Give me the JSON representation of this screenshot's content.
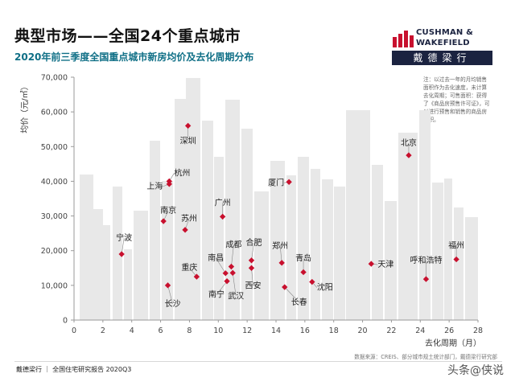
{
  "title": "典型市场——全国24个重点城市",
  "subtitle": "2020年前三季度全国重点城市新房均价及去化周期分布",
  "brand": {
    "line1": "CUSHMAN &",
    "line2": "WAKEFIELD",
    "cn": "戴德梁行",
    "accent_color": "#c8102e",
    "bar_color": "#1b2340"
  },
  "note": "注：以过去一年的月均销售面积作为去化速度，未计算去化周期；可售面积：获得了《商品房预售许可证》，可以进行预售和销售的商品房面积。",
  "source": "数据来源：CREIS、部分城市规土统计部门，戴德梁行研究部",
  "footer": "戴德梁行 ｜ 全国住宅研究报告 2020Q3",
  "watermark": "头条@侠说",
  "colors": {
    "point": "#c8102e",
    "skyline": "#e8e8e8",
    "subtitle": "#0f6f86"
  },
  "chart_data": {
    "type": "scatter",
    "xlabel": "去化周期（月）",
    "ylabel": "均价（元/㎡）",
    "xlim": [
      0,
      28
    ],
    "ylim": [
      0,
      70000
    ],
    "xticks": [
      "0",
      "2",
      "4",
      "6",
      "8",
      "10",
      "12",
      "14",
      "16",
      "18",
      "20",
      "22",
      "24",
      "26",
      "28"
    ],
    "yticks": [
      "0",
      "10,000",
      "20,000",
      "30,000",
      "40,000",
      "50,000",
      "60,000",
      "70,000"
    ],
    "points": [
      {
        "name": "深圳",
        "x": 7.9,
        "y": 56000
      },
      {
        "name": "北京",
        "x": 23.2,
        "y": 47500
      },
      {
        "name": "杭州",
        "x": 6.6,
        "y": 40000
      },
      {
        "name": "上海",
        "x": 6.6,
        "y": 39200
      },
      {
        "name": "厦门",
        "x": 14.9,
        "y": 39800
      },
      {
        "name": "南京",
        "x": 6.2,
        "y": 28500
      },
      {
        "name": "广州",
        "x": 10.3,
        "y": 29800
      },
      {
        "name": "苏州",
        "x": 7.7,
        "y": 26000
      },
      {
        "name": "宁波",
        "x": 3.3,
        "y": 19000
      },
      {
        "name": "福州",
        "x": 26.5,
        "y": 17500
      },
      {
        "name": "天津",
        "x": 20.6,
        "y": 16200
      },
      {
        "name": "合肥",
        "x": 12.3,
        "y": 17200
      },
      {
        "name": "郑州",
        "x": 14.4,
        "y": 16500
      },
      {
        "name": "成都",
        "x": 10.9,
        "y": 15400
      },
      {
        "name": "西安",
        "x": 12.3,
        "y": 15000
      },
      {
        "name": "青岛",
        "x": 15.9,
        "y": 13800
      },
      {
        "name": "武汉",
        "x": 11.0,
        "y": 13600
      },
      {
        "name": "南昌",
        "x": 10.5,
        "y": 13500
      },
      {
        "name": "重庆",
        "x": 8.5,
        "y": 12500
      },
      {
        "name": "呼和浩特",
        "x": 24.4,
        "y": 11800
      },
      {
        "name": "南宁",
        "x": 10.6,
        "y": 11200
      },
      {
        "name": "沈阳",
        "x": 16.5,
        "y": 11000
      },
      {
        "name": "长沙",
        "x": 6.5,
        "y": 10000
      },
      {
        "name": "长春",
        "x": 14.6,
        "y": 9500
      }
    ]
  }
}
